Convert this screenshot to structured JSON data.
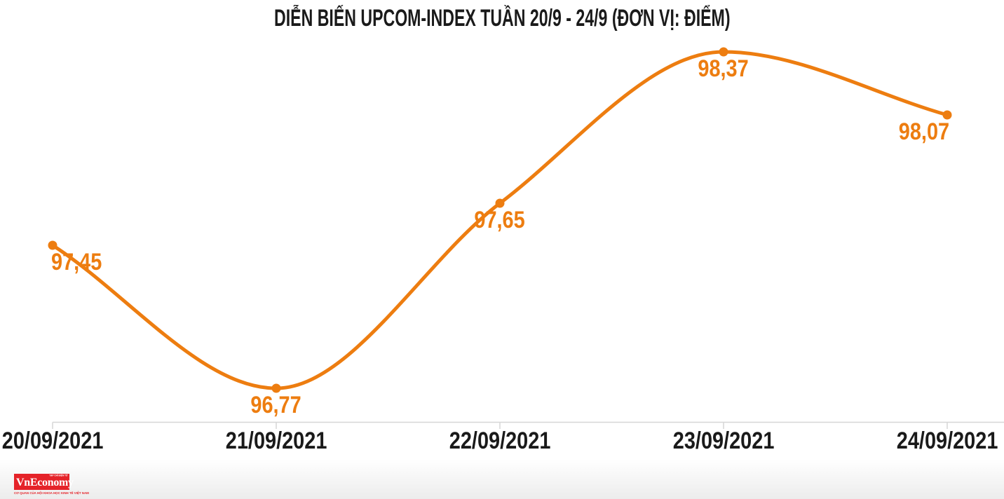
{
  "title": "DIỄN BIẾN UPCOM-INDEX TUẦN 20/9 - 24/9 (ĐƠN VỊ: ĐIỂM)",
  "chart_data": {
    "type": "line",
    "title": "DIỄN BIẾN UPCOM-INDEX TUẦN 20/9 - 24/9 (ĐƠN VỊ: ĐIỂM)",
    "unit_label": "ĐIỂM",
    "categories": [
      "20/09/2021",
      "21/09/2021",
      "22/09/2021",
      "23/09/2021",
      "24/09/2021"
    ],
    "values": [
      97.45,
      96.77,
      97.65,
      98.37,
      98.07
    ],
    "value_labels": [
      "97,45",
      "96,77",
      "97,65",
      "98,37",
      "98,07"
    ],
    "ylim": [
      96.77,
      98.37
    ],
    "xlabel": "",
    "ylabel": "",
    "grid": false,
    "legend": "none",
    "smooth": true,
    "markers": true,
    "line_color": "#ED7D10",
    "label_color": "#ED7D10",
    "axis_text_color": "#1a1a1a",
    "axis_line_color": "#D6D6D6"
  },
  "logo": {
    "name": "VnEconomy",
    "subtext": "TẠP CHÍ ĐIỆN TỬ",
    "tagline": "CƠ QUAN CỦA HỘI KHOA HỌC KINH TẾ VIỆT NAM",
    "bg_color": "#E52329",
    "text_color": "#FFFFFF"
  }
}
